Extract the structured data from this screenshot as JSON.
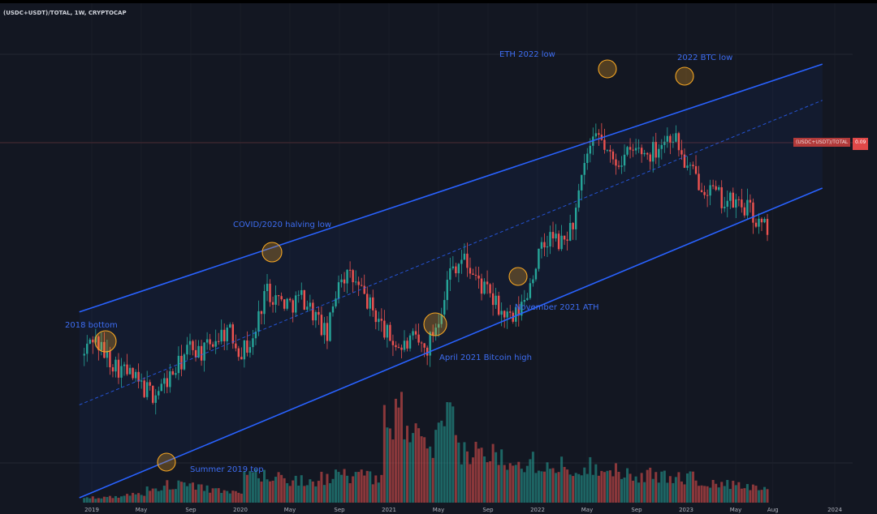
{
  "symbol": "(USDC+USDT)/TOTAL, 1W, CRYPTOCAP",
  "price_tag": {
    "label": "(USDC+USDT)/TOTAL",
    "value": "0.09"
  },
  "colors": {
    "up": "#26a69a",
    "down": "#ef5350",
    "channel": "#2962ff",
    "marker": "#f5a623",
    "annotation": "#3d6df2"
  },
  "annotations": [
    {
      "id": "2018-bottom",
      "text": "2018 bottom"
    },
    {
      "id": "summer-2019-top",
      "text": "Summer 2019 top"
    },
    {
      "id": "covid-2020",
      "text": "COVID/2020 halving low"
    },
    {
      "id": "april-2021",
      "text": "April 2021 Bitcoin high"
    },
    {
      "id": "november-2021",
      "text": "November 2021 ATH"
    },
    {
      "id": "eth-2022",
      "text": "ETH 2022 low"
    },
    {
      "id": "btc-2022",
      "text": "2022 BTC low"
    }
  ],
  "chart_data": {
    "type": "candlestick",
    "interval": "1W",
    "x_axis_ticks": [
      "2019",
      "May",
      "Sep",
      "2020",
      "May",
      "Sep",
      "2021",
      "May",
      "Sep",
      "2022",
      "May",
      "Sep",
      "2023",
      "May",
      "Aug",
      "2024"
    ],
    "x_tick_dates": [
      "2019-01",
      "2019-05",
      "2019-09",
      "2020-01",
      "2020-05",
      "2020-09",
      "2021-01",
      "2021-05",
      "2021-09",
      "2022-01",
      "2022-05",
      "2022-09",
      "2023-01",
      "2023-05",
      "2023-08",
      "2024-01"
    ],
    "last_value": 0.09,
    "grid": true,
    "close_path": [
      [
        "2018-12",
        0.035
      ],
      [
        "2019-01",
        0.048
      ],
      [
        "2019-02",
        0.041
      ],
      [
        "2019-03",
        0.036
      ],
      [
        "2019-04",
        0.033
      ],
      [
        "2019-05",
        0.028
      ],
      [
        "2019-06",
        0.025
      ],
      [
        "2019-07",
        0.03
      ],
      [
        "2019-08",
        0.036
      ],
      [
        "2019-09",
        0.044
      ],
      [
        "2019-10",
        0.041
      ],
      [
        "2019-11",
        0.047
      ],
      [
        "2019-12",
        0.05
      ],
      [
        "2020-01",
        0.042
      ],
      [
        "2020-02",
        0.045
      ],
      [
        "2020-03",
        0.066
      ],
      [
        "2020-04",
        0.062
      ],
      [
        "2020-05",
        0.06
      ],
      [
        "2020-06",
        0.063
      ],
      [
        "2020-07",
        0.056
      ],
      [
        "2020-08",
        0.047
      ],
      [
        "2020-09",
        0.072
      ],
      [
        "2020-10",
        0.07
      ],
      [
        "2020-11",
        0.063
      ],
      [
        "2020-12",
        0.055
      ],
      [
        "2021-01",
        0.047
      ],
      [
        "2021-02",
        0.043
      ],
      [
        "2021-03",
        0.046
      ],
      [
        "2021-04",
        0.042
      ],
      [
        "2021-05",
        0.055
      ],
      [
        "2021-06",
        0.074
      ],
      [
        "2021-07",
        0.078
      ],
      [
        "2021-08",
        0.07
      ],
      [
        "2021-09",
        0.064
      ],
      [
        "2021-10",
        0.057
      ],
      [
        "2021-11",
        0.053
      ],
      [
        "2021-12",
        0.062
      ],
      [
        "2022-01",
        0.078
      ],
      [
        "2022-02",
        0.086
      ],
      [
        "2022-03",
        0.083
      ],
      [
        "2022-04",
        0.093
      ],
      [
        "2022-05",
        0.118
      ],
      [
        "2022-06",
        0.125
      ],
      [
        "2022-07",
        0.115
      ],
      [
        "2022-08",
        0.117
      ],
      [
        "2022-09",
        0.12
      ],
      [
        "2022-10",
        0.118
      ],
      [
        "2022-11",
        0.123
      ],
      [
        "2022-12",
        0.126
      ],
      [
        "2023-01",
        0.113
      ],
      [
        "2023-02",
        0.108
      ],
      [
        "2023-03",
        0.104
      ],
      [
        "2023-04",
        0.1
      ],
      [
        "2023-05",
        0.099
      ],
      [
        "2023-06",
        0.097
      ],
      [
        "2023-07",
        0.09
      ]
    ],
    "channel": {
      "upper": [
        [
          "2018-12",
          0.057
        ],
        [
          "2023-12",
          0.153
        ]
      ],
      "middle": [
        [
          "2018-12",
          0.021
        ],
        [
          "2023-12",
          0.139
        ]
      ],
      "lower": [
        [
          "2018-12",
          -0.015
        ],
        [
          "2023-12",
          0.105
        ]
      ]
    },
    "volume_panel": true
  }
}
